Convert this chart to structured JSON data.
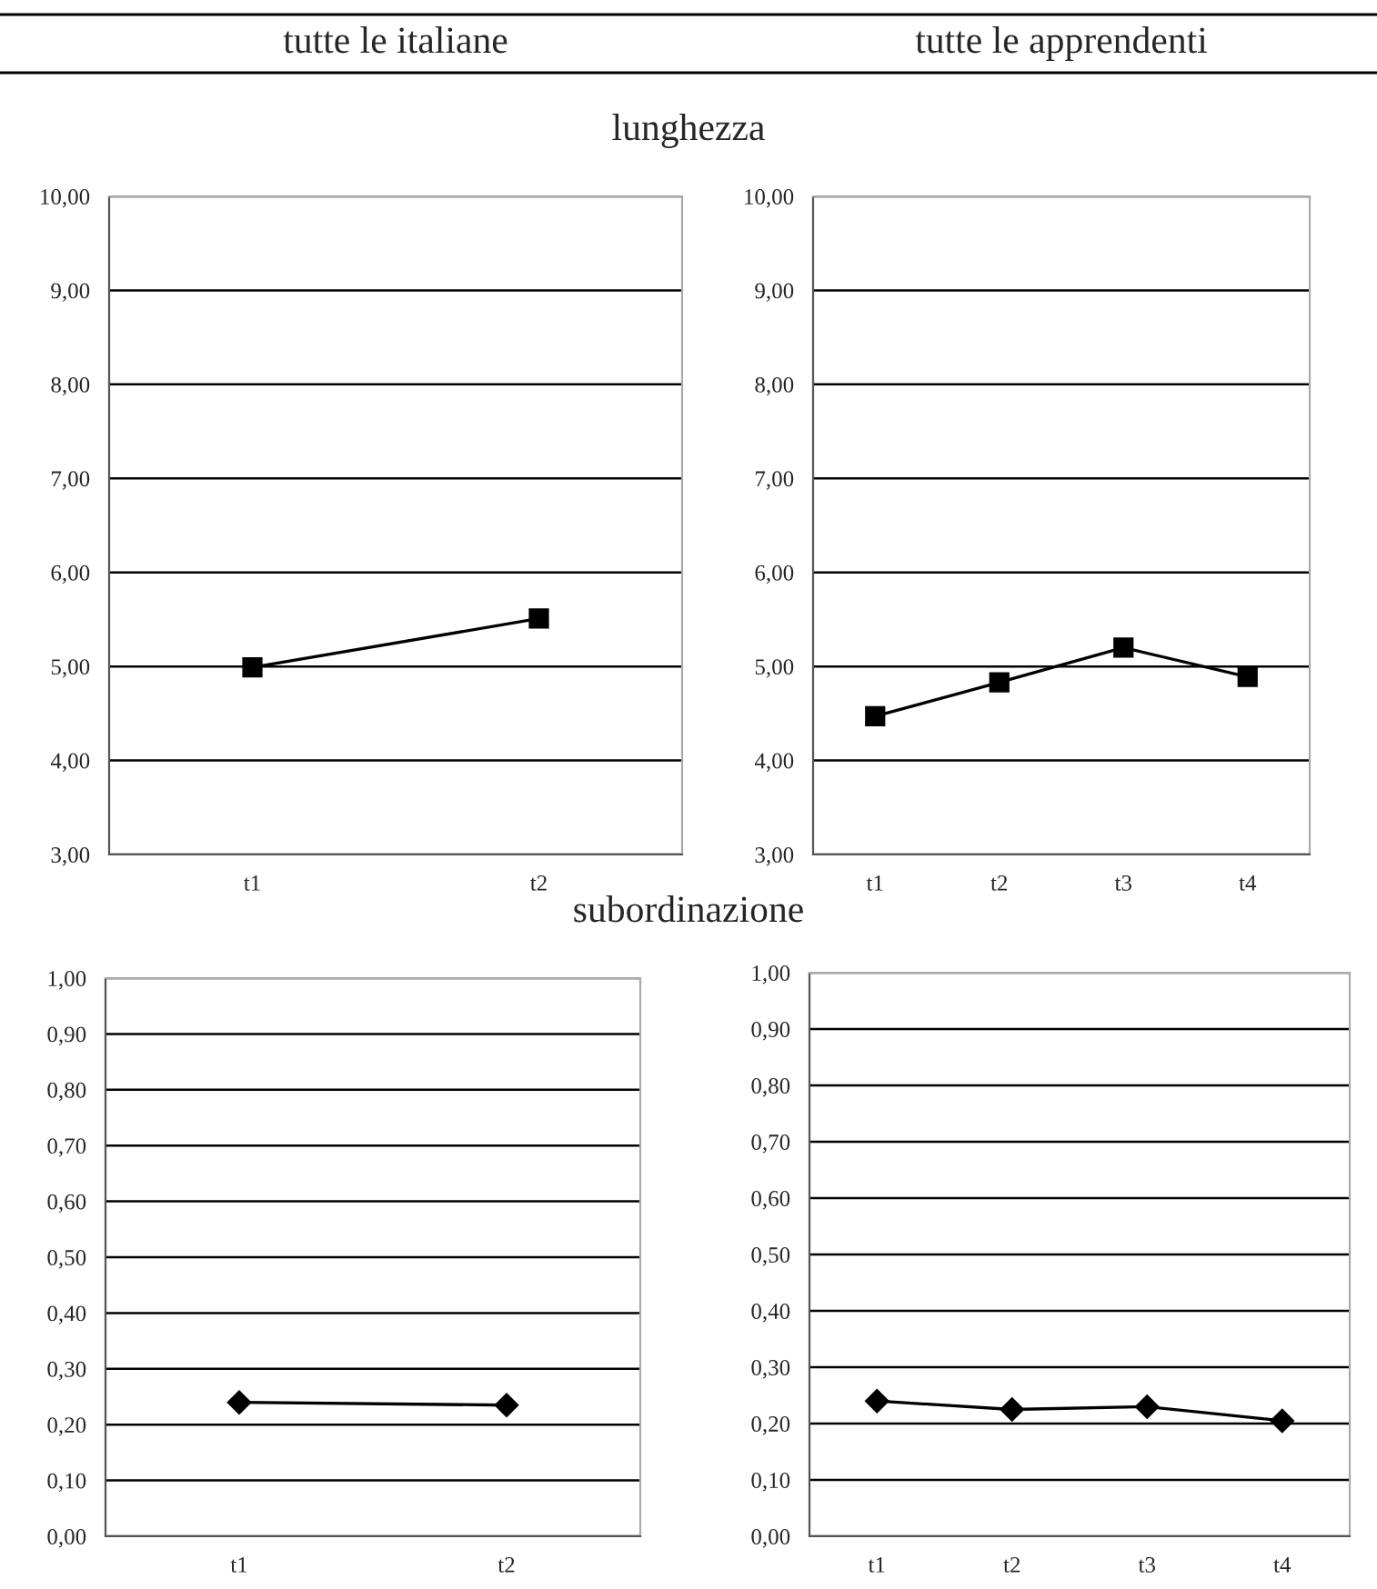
{
  "chart_data": [
    {
      "type": "line",
      "title": "tutte le italiane",
      "annotations": [
        "lunghezza"
      ],
      "categories": [
        "t1",
        "t2"
      ],
      "series": [
        {
          "color": "#000000",
          "values": [
            4.99,
            5.51
          ]
        }
      ],
      "ylim": [
        3,
        10
      ],
      "yticks": [
        {
          "value": 3,
          "label": "3,00"
        },
        {
          "value": 4,
          "label": "4,00"
        },
        {
          "value": 5,
          "label": "5,00"
        },
        {
          "value": 6,
          "label": "6,00"
        },
        {
          "value": 7,
          "label": "7,00"
        },
        {
          "value": 8,
          "label": "8,00"
        },
        {
          "value": 9,
          "label": "9,00"
        },
        {
          "value": 10,
          "label": "10,00"
        }
      ],
      "grid": "y",
      "marker": "square",
      "line_style": "solid",
      "legend": false
    },
    {
      "type": "line",
      "title": "tutte le apprendenti",
      "categories": [
        "t1",
        "t2",
        "t3",
        "t4"
      ],
      "series": [
        {
          "color": "#000000",
          "values": [
            4.47,
            4.83,
            5.2,
            4.89
          ]
        }
      ],
      "ylim": [
        3,
        10
      ],
      "yticks": [
        {
          "value": 3,
          "label": "3,00"
        },
        {
          "value": 4,
          "label": "4,00"
        },
        {
          "value": 5,
          "label": "5,00"
        },
        {
          "value": 6,
          "label": "6,00"
        },
        {
          "value": 7,
          "label": "7,00"
        },
        {
          "value": 8,
          "label": "8,00"
        },
        {
          "value": 9,
          "label": "9,00"
        },
        {
          "value": 10,
          "label": "10,00"
        }
      ],
      "grid": "y",
      "marker": "square",
      "line_style": "solid",
      "legend": false
    },
    {
      "type": "line",
      "annotations": [
        "subordinazione"
      ],
      "categories": [
        "t1",
        "t2"
      ],
      "series": [
        {
          "color": "#000000",
          "values": [
            0.24,
            0.235
          ]
        }
      ],
      "ylim": [
        0,
        1
      ],
      "yticks": [
        {
          "value": 0,
          "label": "0,00"
        },
        {
          "value": 0.1,
          "label": "0,10"
        },
        {
          "value": 0.2,
          "label": "0,20"
        },
        {
          "value": 0.3,
          "label": "0,30"
        },
        {
          "value": 0.4,
          "label": "0,40"
        },
        {
          "value": 0.5,
          "label": "0,50"
        },
        {
          "value": 0.6,
          "label": "0,60"
        },
        {
          "value": 0.7,
          "label": "0,70"
        },
        {
          "value": 0.8,
          "label": "0,80"
        },
        {
          "value": 0.9,
          "label": "0,90"
        },
        {
          "value": 1,
          "label": "1,00"
        }
      ],
      "grid": "y",
      "marker": "diamond",
      "line_style": "solid",
      "legend": false
    },
    {
      "type": "line",
      "categories": [
        "t1",
        "t2",
        "t3",
        "t4"
      ],
      "series": [
        {
          "color": "#000000",
          "values": [
            0.24,
            0.225,
            0.23,
            0.205
          ]
        }
      ],
      "ylim": [
        0,
        1
      ],
      "yticks": [
        {
          "value": 0,
          "label": "0,00"
        },
        {
          "value": 0.1,
          "label": "0,10"
        },
        {
          "value": 0.2,
          "label": "0,20"
        },
        {
          "value": 0.3,
          "label": "0,30"
        },
        {
          "value": 0.4,
          "label": "0,40"
        },
        {
          "value": 0.5,
          "label": "0,50"
        },
        {
          "value": 0.6,
          "label": "0,60"
        },
        {
          "value": 0.7,
          "label": "0,70"
        },
        {
          "value": 0.8,
          "label": "0,80"
        },
        {
          "value": 0.9,
          "label": "0,90"
        },
        {
          "value": 1,
          "label": "1,00"
        }
      ],
      "grid": "y",
      "marker": "diamond",
      "line_style": "solid",
      "legend": false
    }
  ]
}
